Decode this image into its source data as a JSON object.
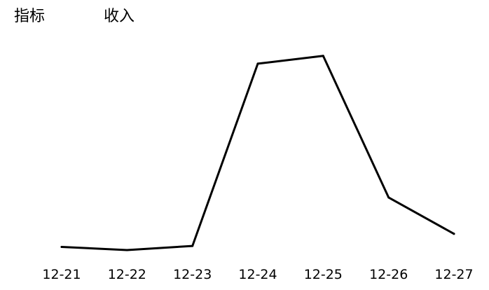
{
  "header": {
    "label": "指标",
    "value": "收入"
  },
  "chart_data": {
    "type": "line",
    "categories": [
      "12-21",
      "12-22",
      "12-23",
      "12-24",
      "12-25",
      "12-26",
      "12-27"
    ],
    "values": [
      1.6,
      0.3,
      2.0,
      77.2,
      80.4,
      22.0,
      7.0
    ],
    "ylim": [
      0,
      100
    ],
    "grid": false,
    "y_axis_visible": false,
    "legend": "none",
    "line_color": "#000000"
  }
}
